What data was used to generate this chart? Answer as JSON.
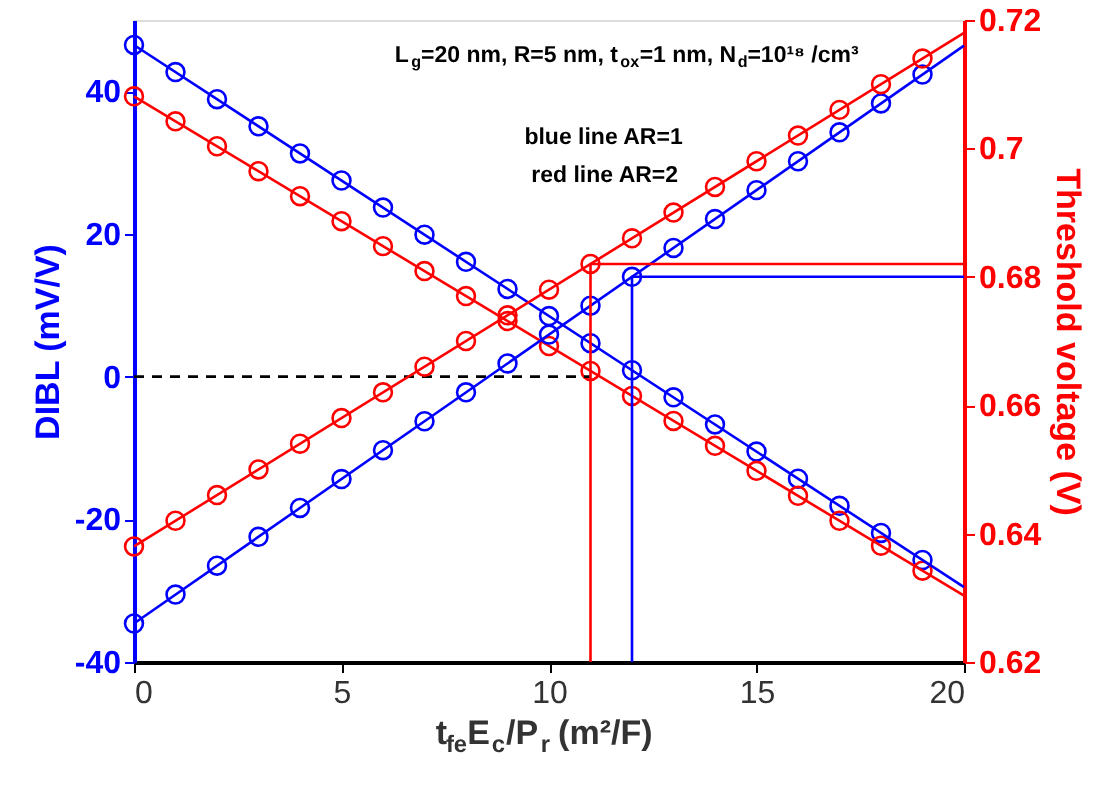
{
  "chart_data": {
    "type": "scatter",
    "xlabel": "t$_{fe}$E$_{c}$/P$_{r}$ (m²/F)",
    "ylabel": "DIBL (mV/V)",
    "y2label": "Threshold voltage (V)",
    "annotations": [
      "L$_{g}$=20 nm, R=5 nm, t$_{ox}$=1 nm, N$_{d}$=10¹⁸ /cm³",
      "blue line AR=1",
      "red line AR=2"
    ],
    "xlim": [
      0,
      20
    ],
    "xticks": [
      0,
      5,
      10,
      15,
      20
    ],
    "ylim": [
      -40,
      50
    ],
    "yticks": [
      -40,
      -20,
      0,
      20,
      40
    ],
    "y2lim": [
      0.62,
      0.72
    ],
    "y2ticks": [
      0.62,
      0.64,
      0.66,
      0.68,
      0.7,
      0.72
    ],
    "x": [
      0,
      1,
      2,
      3,
      4,
      5,
      6,
      7,
      8,
      9,
      10,
      11,
      12,
      13,
      14,
      15,
      16,
      17,
      18,
      19
    ],
    "series": [
      {
        "marker": "circle",
        "axis": "y",
        "color": "#0000ff",
        "values": [
          46.5,
          42.7,
          38.9,
          35.1,
          31.3,
          27.5,
          23.7,
          19.9,
          16.1,
          12.3,
          8.5,
          4.7,
          0.9,
          -2.9,
          -6.7,
          -10.5,
          -14.3,
          -18.1,
          -21.9,
          -25.7
        ]
      },
      {
        "marker": "circle",
        "axis": "y",
        "color": "#ff0000",
        "values": [
          39.3,
          35.8,
          32.3,
          28.8,
          25.3,
          21.8,
          18.3,
          14.8,
          11.3,
          7.8,
          4.3,
          0.8,
          -2.7,
          -6.2,
          -9.7,
          -13.2,
          -16.7,
          -20.2,
          -23.7,
          -27.2
        ]
      },
      {
        "type": "line",
        "marker": "none",
        "axis": "y",
        "color": "#0000ff",
        "x": [
          0,
          20
        ],
        "values": [
          46.5,
          -29.5
        ]
      },
      {
        "type": "line",
        "marker": "none",
        "axis": "y",
        "color": "#ff0000",
        "x": [
          0,
          20
        ],
        "values": [
          39.3,
          -30.7
        ]
      },
      {
        "type": "line",
        "marker": "none",
        "axis": "y",
        "color": "#000000",
        "line_style": "dashed",
        "x": [
          0,
          11
        ],
        "values": [
          0,
          0
        ]
      },
      {
        "marker": "circle",
        "axis": "y2",
        "color": "#0000ff",
        "values": [
          0.626,
          0.6305,
          0.635,
          0.6395,
          0.644,
          0.6485,
          0.653,
          0.6575,
          0.662,
          0.6665,
          0.671,
          0.6755,
          0.68,
          0.6845,
          0.689,
          0.6935,
          0.698,
          0.7025,
          0.707,
          0.7115
        ]
      },
      {
        "marker": "circle",
        "axis": "y2",
        "color": "#ff0000",
        "values": [
          0.638,
          0.642,
          0.646,
          0.65,
          0.654,
          0.658,
          0.662,
          0.666,
          0.67,
          0.674,
          0.678,
          0.682,
          0.686,
          0.69,
          0.694,
          0.698,
          0.702,
          0.706,
          0.71,
          0.714
        ]
      },
      {
        "type": "line",
        "marker": "none",
        "axis": "y2",
        "color": "#0000ff",
        "x": [
          0,
          20
        ],
        "values": [
          0.626,
          0.716
        ]
      },
      {
        "type": "line",
        "marker": "none",
        "axis": "y2",
        "color": "#ff0000",
        "x": [
          0,
          20
        ],
        "values": [
          0.638,
          0.718
        ]
      },
      {
        "type": "line",
        "marker": "none",
        "axis": "y2",
        "color": "#ff0000",
        "x": [
          11,
          11,
          20
        ],
        "values": [
          0.62,
          0.682,
          0.682
        ]
      },
      {
        "type": "line",
        "marker": "none",
        "axis": "y2",
        "color": "#0000ff",
        "x": [
          12,
          12,
          20
        ],
        "values": [
          0.62,
          0.68,
          0.68
        ]
      }
    ]
  }
}
